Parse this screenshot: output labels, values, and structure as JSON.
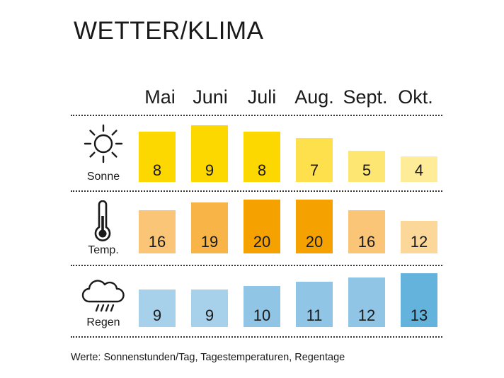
{
  "title": "WETTER/KLIMA",
  "footnote": "Werte: Sonnenstunden/Tag, Tagestemperaturen, Regentage",
  "colors": {
    "sonne": [
      "#fdd700",
      "#fdd700",
      "#fdd700",
      "#fde04c",
      "#fde672",
      "#feec98"
    ],
    "temp": [
      "#fbc578",
      "#f9b447",
      "#f5a200",
      "#f5a200",
      "#fbc578",
      "#fcd79a"
    ],
    "regen": [
      "#a7d1eb",
      "#a7d1eb",
      "#90c5e6",
      "#90c5e6",
      "#90c5e6",
      "#63b3dc"
    ]
  },
  "chart_data": {
    "type": "bar",
    "title": "WETTER/KLIMA",
    "categories": [
      "Mai",
      "Juni",
      "Juli",
      "Aug.",
      "Sept.",
      "Okt."
    ],
    "series": [
      {
        "name": "Sonne",
        "icon": "sun-icon",
        "values": [
          8,
          9,
          8,
          7,
          5,
          4
        ]
      },
      {
        "name": "Temp.",
        "icon": "thermometer-icon",
        "values": [
          16,
          19,
          20,
          20,
          16,
          12
        ]
      },
      {
        "name": "Regen",
        "icon": "rain-cloud-icon",
        "values": [
          9,
          9,
          10,
          11,
          12,
          13
        ]
      }
    ],
    "grid": false,
    "legend": "none"
  }
}
